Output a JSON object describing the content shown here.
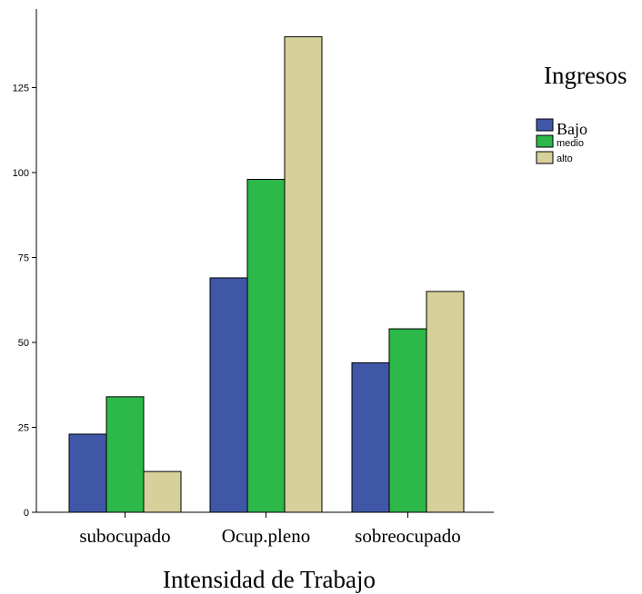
{
  "chart_data": {
    "type": "bar",
    "title": "",
    "xlabel": "Intensidad de Trabajo",
    "ylabel": "",
    "categories": [
      "subocupado",
      "Ocup.pleno",
      "sobreocupado"
    ],
    "series": [
      {
        "name": "Bajo",
        "color": "#4057a8",
        "values": [
          23,
          69,
          44
        ]
      },
      {
        "name": "medio",
        "color": "#2db84a",
        "values": [
          34,
          98,
          54
        ]
      },
      {
        "name": "alto",
        "color": "#d6d09a",
        "values": [
          12,
          140,
          65
        ]
      }
    ],
    "ylim": [
      0,
      150
    ],
    "yticks": [
      0,
      25,
      50,
      75,
      100,
      125
    ],
    "grid": false,
    "legend": {
      "title": "Ingresos",
      "placement": "top-right"
    }
  }
}
